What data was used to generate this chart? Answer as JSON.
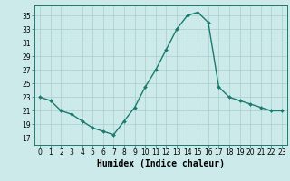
{
  "x": [
    0,
    1,
    2,
    3,
    4,
    5,
    6,
    7,
    8,
    9,
    10,
    11,
    12,
    13,
    14,
    15,
    16,
    17,
    18,
    19,
    20,
    21,
    22,
    23
  ],
  "y": [
    23,
    22.5,
    21,
    20.5,
    19.5,
    18.5,
    18,
    17.5,
    19.5,
    21.5,
    24.5,
    27,
    30,
    33,
    35,
    35.5,
    34,
    24.5,
    23,
    22.5,
    22,
    21.5,
    21,
    21
  ],
  "line_color": "#1a7a6e",
  "marker": "D",
  "markersize": 2,
  "linewidth": 1.0,
  "bg_color": "#cceaea",
  "grid_color": "#aacccc",
  "xlabel": "Humidex (Indice chaleur)",
  "xlabel_fontsize": 7,
  "ylabel_ticks": [
    17,
    19,
    21,
    23,
    25,
    27,
    29,
    31,
    33,
    35
  ],
  "ylim": [
    16.0,
    36.5
  ],
  "xlim": [
    -0.5,
    23.5
  ],
  "xtick_labels": [
    "0",
    "1",
    "2",
    "3",
    "4",
    "5",
    "6",
    "7",
    "8",
    "9",
    "10",
    "11",
    "12",
    "13",
    "14",
    "15",
    "16",
    "17",
    "18",
    "19",
    "20",
    "21",
    "22",
    "23"
  ],
  "tick_fontsize": 5.5
}
